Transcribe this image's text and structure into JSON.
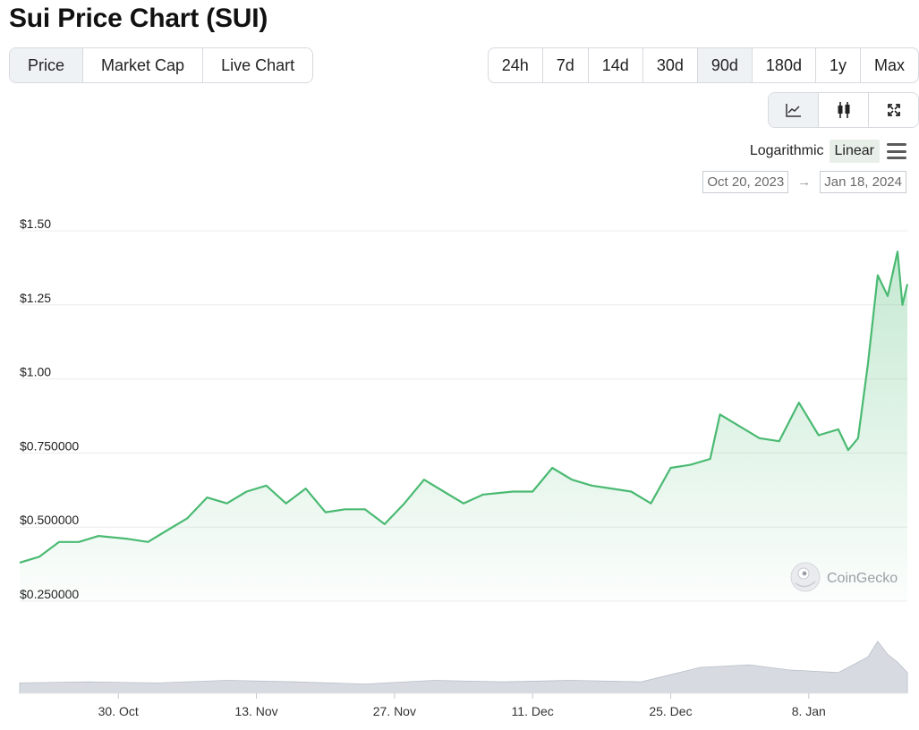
{
  "title": "Sui Price Chart (SUI)",
  "tabs": [
    {
      "label": "Price"
    },
    {
      "label": "Market Cap"
    },
    {
      "label": "Live Chart"
    }
  ],
  "ranges": [
    {
      "label": "24h"
    },
    {
      "label": "7d"
    },
    {
      "label": "14d"
    },
    {
      "label": "30d"
    },
    {
      "label": "90d"
    },
    {
      "label": "180d"
    },
    {
      "label": "1y"
    },
    {
      "label": "Max"
    }
  ],
  "active_range": "90d",
  "scale": {
    "log_label": "Logarithmic",
    "linear_label": "Linear",
    "active": "Linear"
  },
  "date_range": {
    "from": "Oct 20, 2023",
    "to": "Jan 18, 2024"
  },
  "watermark": "CoinGecko",
  "colors": {
    "line": "#4aba72",
    "fill": "#4aba72",
    "volume": "#c6ccd4",
    "grid": "#ececec"
  },
  "chart_data": {
    "type": "line",
    "y_scale": "linear",
    "ylim": [
      0.25,
      1.5
    ],
    "yticks": [
      {
        "value": 1.5,
        "label": "$1.50"
      },
      {
        "value": 1.25,
        "label": "$1.25"
      },
      {
        "value": 1.0,
        "label": "$1.00"
      },
      {
        "value": 0.75,
        "label": "$0.750000"
      },
      {
        "value": 0.5,
        "label": "$0.500000"
      },
      {
        "value": 0.25,
        "label": "$0.250000"
      }
    ],
    "xlim": [
      "2023-10-20",
      "2024-01-18"
    ],
    "xticks": [
      {
        "date": "2023-10-30",
        "label": "30. Oct"
      },
      {
        "date": "2023-11-13",
        "label": "13. Nov"
      },
      {
        "date": "2023-11-27",
        "label": "27. Nov"
      },
      {
        "date": "2023-12-11",
        "label": "11. Dec"
      },
      {
        "date": "2023-12-25",
        "label": "25. Dec"
      },
      {
        "date": "2024-01-08",
        "label": "8. Jan"
      }
    ],
    "price": [
      [
        "2023-10-20",
        0.38
      ],
      [
        "2023-10-22",
        0.4
      ],
      [
        "2023-10-24",
        0.45
      ],
      [
        "2023-10-26",
        0.45
      ],
      [
        "2023-10-28",
        0.47
      ],
      [
        "2023-10-31",
        0.46
      ],
      [
        "2023-11-02",
        0.45
      ],
      [
        "2023-11-04",
        0.49
      ],
      [
        "2023-11-06",
        0.53
      ],
      [
        "2023-11-08",
        0.6
      ],
      [
        "2023-11-10",
        0.58
      ],
      [
        "2023-11-12",
        0.62
      ],
      [
        "2023-11-14",
        0.64
      ],
      [
        "2023-11-16",
        0.58
      ],
      [
        "2023-11-18",
        0.63
      ],
      [
        "2023-11-20",
        0.55
      ],
      [
        "2023-11-22",
        0.56
      ],
      [
        "2023-11-24",
        0.56
      ],
      [
        "2023-11-26",
        0.51
      ],
      [
        "2023-11-28",
        0.58
      ],
      [
        "2023-11-30",
        0.66
      ],
      [
        "2023-12-02",
        0.62
      ],
      [
        "2023-12-04",
        0.58
      ],
      [
        "2023-12-06",
        0.61
      ],
      [
        "2023-12-09",
        0.62
      ],
      [
        "2023-12-11",
        0.62
      ],
      [
        "2023-12-13",
        0.7
      ],
      [
        "2023-12-15",
        0.66
      ],
      [
        "2023-12-17",
        0.64
      ],
      [
        "2023-12-19",
        0.63
      ],
      [
        "2023-12-21",
        0.62
      ],
      [
        "2023-12-23",
        0.58
      ],
      [
        "2023-12-25",
        0.7
      ],
      [
        "2023-12-27",
        0.71
      ],
      [
        "2023-12-29",
        0.73
      ],
      [
        "2023-12-30",
        0.88
      ],
      [
        "2024-01-01",
        0.84
      ],
      [
        "2024-01-03",
        0.8
      ],
      [
        "2024-01-05",
        0.79
      ],
      [
        "2024-01-07",
        0.92
      ],
      [
        "2024-01-09",
        0.81
      ],
      [
        "2024-01-11",
        0.83
      ],
      [
        "2024-01-12",
        0.76
      ],
      [
        "2024-01-13",
        0.8
      ],
      [
        "2024-01-14",
        1.05
      ],
      [
        "2024-01-15",
        1.35
      ],
      [
        "2024-01-16",
        1.28
      ],
      [
        "2024-01-17",
        1.43
      ],
      [
        "2024-01-17T12:00",
        1.25
      ],
      [
        "2024-01-18",
        1.32
      ]
    ],
    "volume": [
      [
        "2023-10-20",
        0.2
      ],
      [
        "2023-10-27",
        0.22
      ],
      [
        "2023-11-03",
        0.2
      ],
      [
        "2023-11-10",
        0.25
      ],
      [
        "2023-11-17",
        0.22
      ],
      [
        "2023-11-24",
        0.18
      ],
      [
        "2023-12-01",
        0.25
      ],
      [
        "2023-12-08",
        0.22
      ],
      [
        "2023-12-15",
        0.25
      ],
      [
        "2023-12-22",
        0.22
      ],
      [
        "2023-12-28",
        0.5
      ],
      [
        "2024-01-02",
        0.55
      ],
      [
        "2024-01-06",
        0.45
      ],
      [
        "2024-01-11",
        0.4
      ],
      [
        "2024-01-14",
        0.7
      ],
      [
        "2024-01-15",
        1.0
      ],
      [
        "2024-01-16",
        0.75
      ],
      [
        "2024-01-17",
        0.6
      ],
      [
        "2024-01-18",
        0.4
      ]
    ]
  }
}
